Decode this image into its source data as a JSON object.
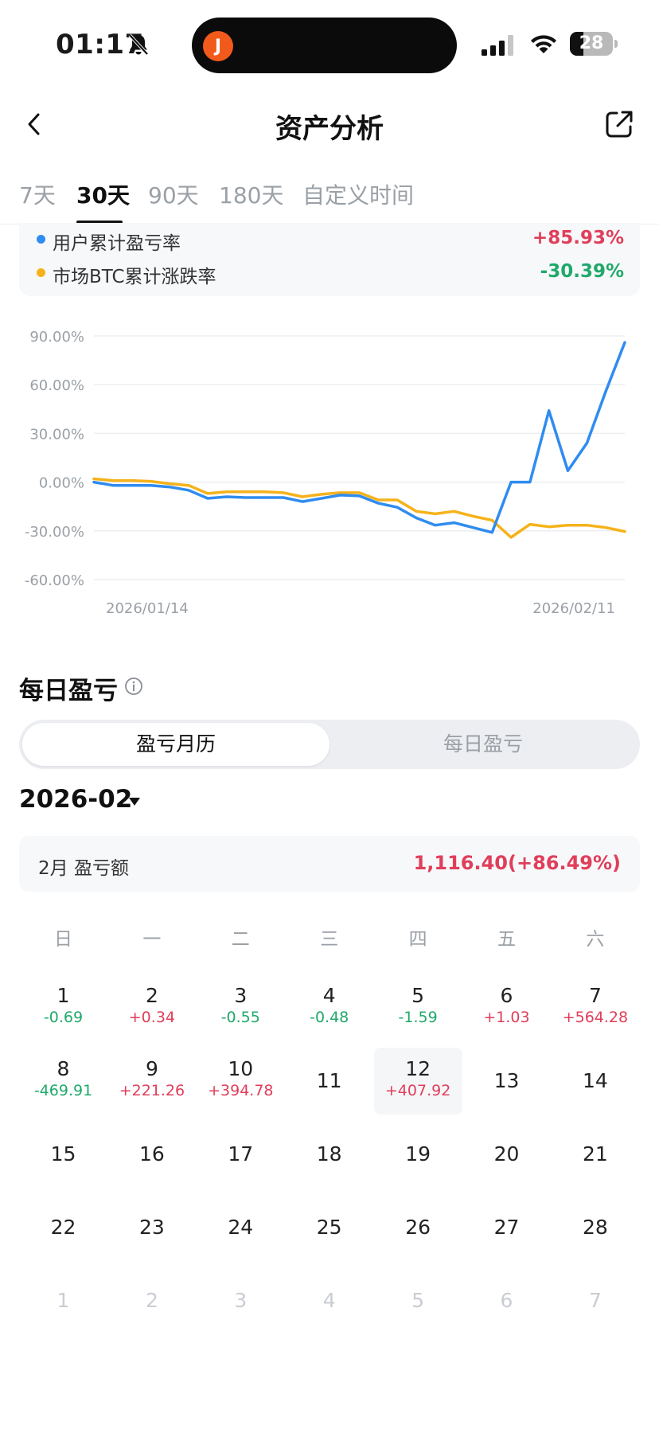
{
  "status_bar": {
    "time": "01:17",
    "battery": "28"
  },
  "nav": {
    "title": "资产分析"
  },
  "tabs": [
    {
      "label": "7天",
      "active": false
    },
    {
      "label": "30天",
      "active": true
    },
    {
      "label": "90天",
      "active": false
    },
    {
      "label": "180天",
      "active": false
    },
    {
      "label": "自定义时间",
      "active": false
    }
  ],
  "legend": [
    {
      "label": "用户累计盈亏率",
      "value": "+85.93%",
      "color": "#2f8cf0",
      "value_color": "#e03e5a"
    },
    {
      "label": "市场BTC累计涨跌率",
      "value": "-30.39%",
      "color": "#f5b21a",
      "value_color": "#1fa96a"
    }
  ],
  "chart_data": {
    "type": "line",
    "x_start_label": "2026/01/14",
    "x_end_label": "2026/02/11",
    "y_ticks": [
      "90.00%",
      "60.00%",
      "30.00%",
      "0.00%",
      "-30.00%",
      "-60.00%"
    ],
    "ylim": [
      -60,
      90
    ],
    "grid": true,
    "series": [
      {
        "name": "用户累计盈亏率",
        "color": "#2f8cf0",
        "values": [
          0,
          -2,
          -2,
          -2,
          -3,
          -5,
          -10,
          -9,
          -9.5,
          -9.5,
          -9.5,
          -12,
          -10,
          -8,
          -8.5,
          -13,
          -15.5,
          -22,
          -26.5,
          -25,
          -28,
          -31,
          0,
          0,
          44,
          7,
          24,
          56,
          86
        ]
      },
      {
        "name": "市场BTC累计涨跌率",
        "color": "#f5b21a",
        "values": [
          2,
          1,
          1,
          0.5,
          -1,
          -2,
          -7,
          -6,
          -6,
          -6,
          -6.5,
          -9,
          -7.5,
          -6.5,
          -6.5,
          -11,
          -11,
          -18,
          -19.5,
          -18,
          -21,
          -23.5,
          -34,
          -26,
          -27.5,
          -26.5,
          -26.5,
          -28,
          -30.39
        ]
      }
    ]
  },
  "daily": {
    "title": "每日盈亏",
    "seg_active": "盈亏月历",
    "seg_inactive": "每日盈亏",
    "month": "2026-02",
    "summary_label": "2月 盈亏额",
    "summary_value": "1,116.40(+86.49%)"
  },
  "calendar": {
    "weekdays": [
      "日",
      "一",
      "二",
      "三",
      "四",
      "五",
      "六"
    ],
    "days": [
      {
        "num": "1",
        "pnl": "-0.69",
        "sign": "neg"
      },
      {
        "num": "2",
        "pnl": "+0.34",
        "sign": "pos"
      },
      {
        "num": "3",
        "pnl": "-0.55",
        "sign": "neg"
      },
      {
        "num": "4",
        "pnl": "-0.48",
        "sign": "neg"
      },
      {
        "num": "5",
        "pnl": "-1.59",
        "sign": "neg"
      },
      {
        "num": "6",
        "pnl": "+1.03",
        "sign": "pos"
      },
      {
        "num": "7",
        "pnl": "+564.28",
        "sign": "pos"
      },
      {
        "num": "8",
        "pnl": "-469.91",
        "sign": "neg"
      },
      {
        "num": "9",
        "pnl": "+221.26",
        "sign": "pos"
      },
      {
        "num": "10",
        "pnl": "+394.78",
        "sign": "pos"
      },
      {
        "num": "11"
      },
      {
        "num": "12",
        "pnl": "+407.92",
        "sign": "pos",
        "today": true
      },
      {
        "num": "13"
      },
      {
        "num": "14"
      },
      {
        "num": "15"
      },
      {
        "num": "16"
      },
      {
        "num": "17"
      },
      {
        "num": "18"
      },
      {
        "num": "19"
      },
      {
        "num": "20"
      },
      {
        "num": "21"
      },
      {
        "num": "22"
      },
      {
        "num": "23"
      },
      {
        "num": "24"
      },
      {
        "num": "25"
      },
      {
        "num": "26"
      },
      {
        "num": "27"
      },
      {
        "num": "28"
      },
      {
        "num": "1",
        "faded": true
      },
      {
        "num": "2",
        "faded": true
      },
      {
        "num": "3",
        "faded": true
      },
      {
        "num": "4",
        "faded": true
      },
      {
        "num": "5",
        "faded": true
      },
      {
        "num": "6",
        "faded": true
      },
      {
        "num": "7",
        "faded": true
      }
    ]
  }
}
